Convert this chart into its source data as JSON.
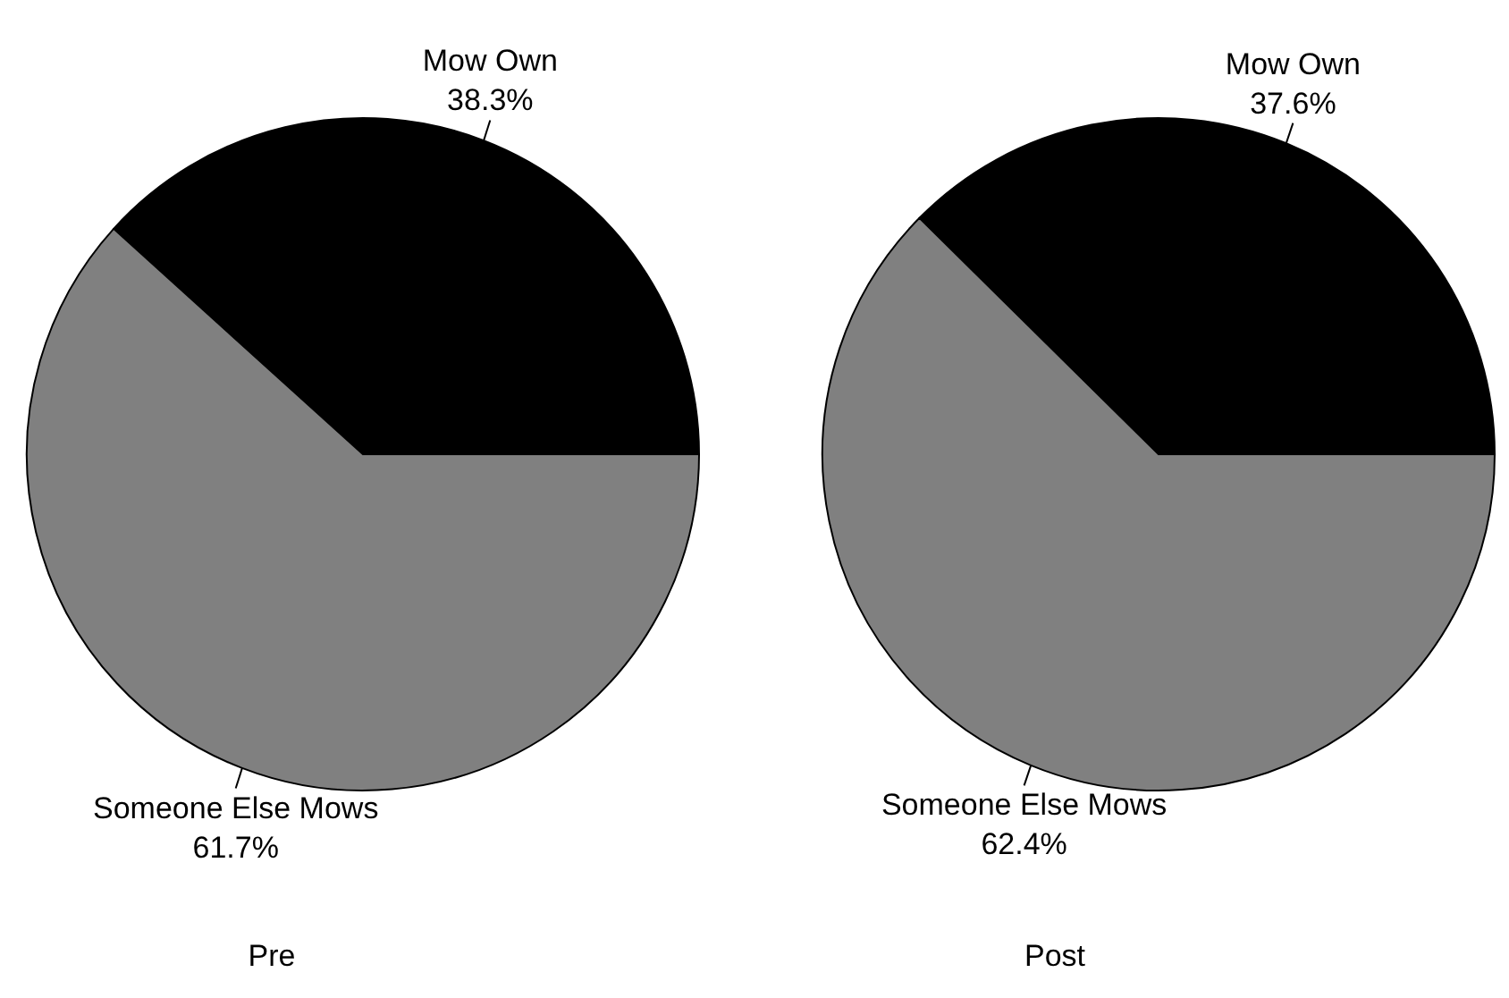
{
  "chart_data": [
    {
      "type": "pie",
      "title": "Pre",
      "categories": [
        "Mow Own",
        "Someone Else Mows"
      ],
      "values": [
        38.3,
        61.7
      ],
      "colors": [
        "#000000",
        "#808080"
      ],
      "value_labels": [
        "38.3%",
        "61.7%"
      ]
    },
    {
      "type": "pie",
      "title": "Post",
      "categories": [
        "Mow Own",
        "Someone Else Mows"
      ],
      "values": [
        37.6,
        62.4
      ],
      "colors": [
        "#000000",
        "#808080"
      ],
      "value_labels": [
        "37.6%",
        "62.4%"
      ]
    }
  ]
}
